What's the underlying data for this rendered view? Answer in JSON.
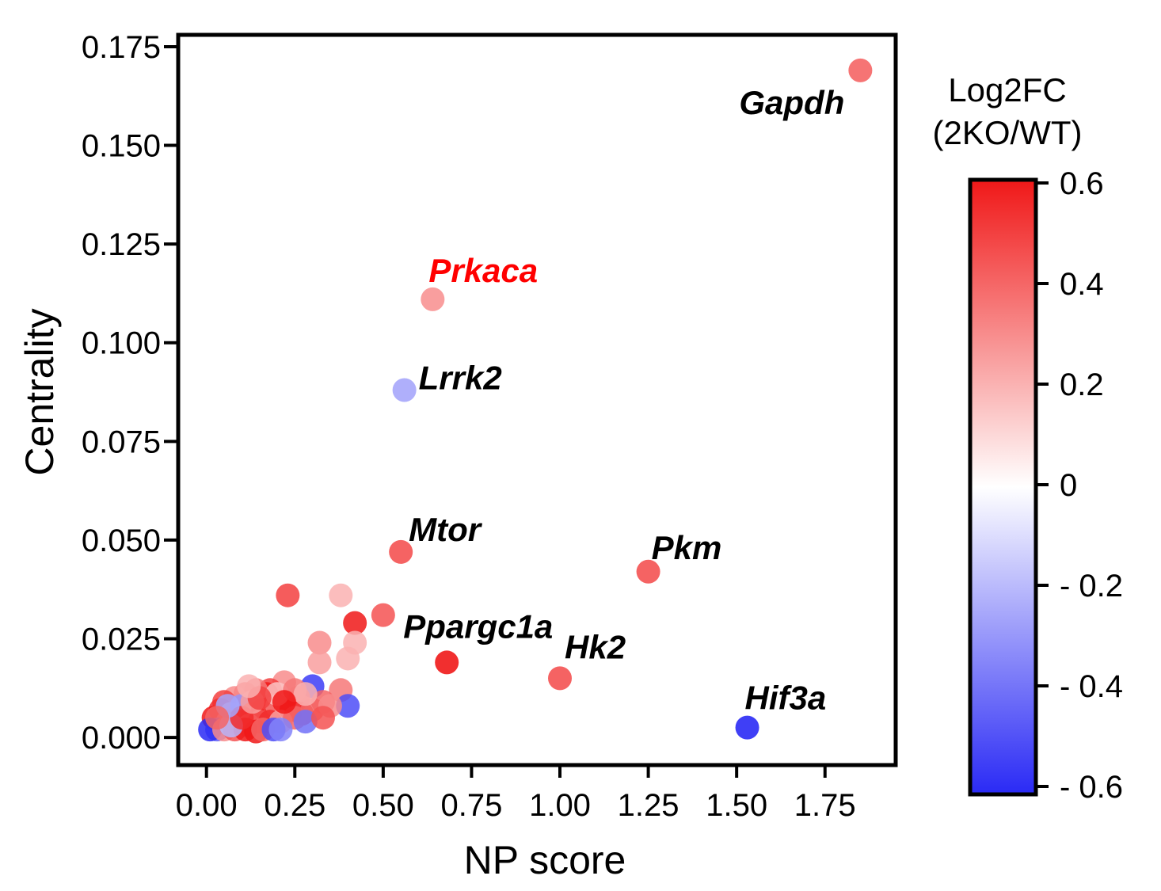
{
  "chart_data": {
    "type": "scatter",
    "xlabel": "NP score",
    "ylabel": "Centrality",
    "xlim": [
      -0.08,
      1.95
    ],
    "ylim": [
      -0.007,
      0.178
    ],
    "x_ticks": [
      {
        "value": 0.0,
        "label": "0.00"
      },
      {
        "value": 0.25,
        "label": "0.25"
      },
      {
        "value": 0.5,
        "label": "0.50"
      },
      {
        "value": 0.75,
        "label": "0.75"
      },
      {
        "value": 1.0,
        "label": "1.00"
      },
      {
        "value": 1.25,
        "label": "1.25"
      },
      {
        "value": 1.5,
        "label": "1.50"
      },
      {
        "value": 1.75,
        "label": "1.75"
      }
    ],
    "y_ticks": [
      {
        "value": 0.0,
        "label": "0.000"
      },
      {
        "value": 0.025,
        "label": "0.025"
      },
      {
        "value": 0.05,
        "label": "0.050"
      },
      {
        "value": 0.075,
        "label": "0.075"
      },
      {
        "value": 0.1,
        "label": "0.100"
      },
      {
        "value": 0.125,
        "label": "0.125"
      },
      {
        "value": 0.15,
        "label": "0.150"
      },
      {
        "value": 0.175,
        "label": "0.175"
      }
    ],
    "grid": false,
    "colorbar": {
      "title_lines": [
        "Log2FC",
        "(2KO/WT)"
      ],
      "range": [
        -0.6,
        0.6
      ],
      "low_color": "#2a2af5",
      "mid_color": "#ffffff",
      "high_color": "#f01818",
      "ticks": [
        {
          "value": 0.6,
          "label": "0.6"
        },
        {
          "value": 0.4,
          "label": "0.4"
        },
        {
          "value": 0.2,
          "label": "0.2"
        },
        {
          "value": 0.0,
          "label": "0"
        },
        {
          "value": -0.2,
          "label": "- 0.2"
        },
        {
          "value": -0.4,
          "label": "- 0.4"
        },
        {
          "value": -0.6,
          "label": "- 0.6"
        }
      ]
    },
    "labeled_points": [
      {
        "gene": "Gapdh",
        "x": 1.85,
        "y": 0.169,
        "log2fc": 0.4,
        "label_color": "#000000"
      },
      {
        "gene": "Prkaca",
        "x": 0.64,
        "y": 0.111,
        "log2fc": 0.28,
        "label_color": "#ff0000"
      },
      {
        "gene": "Lrrk2",
        "x": 0.56,
        "y": 0.088,
        "log2fc": -0.25,
        "label_color": "#000000"
      },
      {
        "gene": "Mtor",
        "x": 0.55,
        "y": 0.047,
        "log2fc": 0.45,
        "label_color": "#000000"
      },
      {
        "gene": "Pkm",
        "x": 1.25,
        "y": 0.042,
        "log2fc": 0.45,
        "label_color": "#000000"
      },
      {
        "gene": "Ppargc1a",
        "x": 0.68,
        "y": 0.019,
        "log2fc": 0.6,
        "label_color": "#000000"
      },
      {
        "gene": "Hk2",
        "x": 1.0,
        "y": 0.015,
        "log2fc": 0.45,
        "label_color": "#000000"
      },
      {
        "gene": "Hif3a",
        "x": 1.53,
        "y": 0.0025,
        "log2fc": -0.6,
        "label_color": "#000000"
      }
    ],
    "points": [
      {
        "x": 0.23,
        "y": 0.036,
        "c": 0.5
      },
      {
        "x": 0.38,
        "y": 0.036,
        "c": 0.2
      },
      {
        "x": 0.5,
        "y": 0.031,
        "c": 0.45
      },
      {
        "x": 0.42,
        "y": 0.029,
        "c": 0.6
      },
      {
        "x": 0.32,
        "y": 0.024,
        "c": 0.3
      },
      {
        "x": 0.42,
        "y": 0.024,
        "c": 0.2
      },
      {
        "x": 0.4,
        "y": 0.02,
        "c": 0.2
      },
      {
        "x": 0.32,
        "y": 0.019,
        "c": 0.25
      },
      {
        "x": 0.38,
        "y": 0.012,
        "c": 0.35
      },
      {
        "x": 0.3,
        "y": 0.013,
        "c": -0.55
      },
      {
        "x": 0.4,
        "y": 0.008,
        "c": -0.5
      },
      {
        "x": 0.33,
        "y": 0.009,
        "c": 0.4
      },
      {
        "x": 0.26,
        "y": 0.01,
        "c": 0.45
      },
      {
        "x": 0.22,
        "y": 0.014,
        "c": 0.3
      },
      {
        "x": 0.18,
        "y": 0.012,
        "c": 0.5
      },
      {
        "x": 0.17,
        "y": 0.011,
        "c": 0.6
      },
      {
        "x": 0.14,
        "y": 0.012,
        "c": 0.35
      },
      {
        "x": 0.11,
        "y": 0.011,
        "c": 0.4
      },
      {
        "x": 0.08,
        "y": 0.01,
        "c": 0.3
      },
      {
        "x": 0.05,
        "y": 0.009,
        "c": 0.5
      },
      {
        "x": 0.04,
        "y": 0.007,
        "c": 0.55
      },
      {
        "x": 0.02,
        "y": 0.005,
        "c": 0.6
      },
      {
        "x": 0.07,
        "y": 0.006,
        "c": 0.25
      },
      {
        "x": 0.1,
        "y": 0.008,
        "c": -0.3
      },
      {
        "x": 0.13,
        "y": 0.006,
        "c": 0.45
      },
      {
        "x": 0.16,
        "y": 0.007,
        "c": 0.6
      },
      {
        "x": 0.2,
        "y": 0.008,
        "c": 0.35
      },
      {
        "x": 0.24,
        "y": 0.007,
        "c": 0.6
      },
      {
        "x": 0.27,
        "y": 0.006,
        "c": 0.5
      },
      {
        "x": 0.3,
        "y": 0.007,
        "c": 0.4
      },
      {
        "x": 0.35,
        "y": 0.008,
        "c": 0.3
      },
      {
        "x": 0.06,
        "y": 0.004,
        "c": 0.35
      },
      {
        "x": 0.09,
        "y": 0.004,
        "c": 0.5
      },
      {
        "x": 0.12,
        "y": 0.003,
        "c": 0.3
      },
      {
        "x": 0.15,
        "y": 0.004,
        "c": 0.45
      },
      {
        "x": 0.18,
        "y": 0.004,
        "c": 0.55
      },
      {
        "x": 0.21,
        "y": 0.004,
        "c": 0.25
      },
      {
        "x": 0.25,
        "y": 0.005,
        "c": 0.4
      },
      {
        "x": 0.28,
        "y": 0.004,
        "c": -0.4
      },
      {
        "x": 0.03,
        "y": 0.002,
        "c": -0.45
      },
      {
        "x": 0.01,
        "y": 0.002,
        "c": -0.6
      },
      {
        "x": 0.05,
        "y": 0.002,
        "c": 0.3
      },
      {
        "x": 0.08,
        "y": 0.002,
        "c": 0.45
      },
      {
        "x": 0.11,
        "y": 0.002,
        "c": 0.6
      },
      {
        "x": 0.14,
        "y": 0.0015,
        "c": 0.6
      },
      {
        "x": 0.16,
        "y": 0.002,
        "c": 0.4
      },
      {
        "x": 0.19,
        "y": 0.002,
        "c": -0.5
      },
      {
        "x": 0.21,
        "y": 0.002,
        "c": -0.35
      },
      {
        "x": 0.07,
        "y": 0.003,
        "c": -0.2
      },
      {
        "x": 0.1,
        "y": 0.005,
        "c": 0.55
      },
      {
        "x": 0.13,
        "y": 0.009,
        "c": 0.25
      },
      {
        "x": 0.2,
        "y": 0.011,
        "c": 0.15
      },
      {
        "x": 0.25,
        "y": 0.012,
        "c": 0.35
      },
      {
        "x": 0.28,
        "y": 0.011,
        "c": 0.2
      },
      {
        "x": 0.06,
        "y": 0.008,
        "c": -0.25
      },
      {
        "x": 0.03,
        "y": 0.005,
        "c": 0.4
      },
      {
        "x": 0.22,
        "y": 0.009,
        "c": 0.6
      },
      {
        "x": 0.15,
        "y": 0.01,
        "c": 0.5
      },
      {
        "x": 0.33,
        "y": 0.005,
        "c": 0.45
      },
      {
        "x": 0.12,
        "y": 0.013,
        "c": 0.2
      }
    ]
  }
}
